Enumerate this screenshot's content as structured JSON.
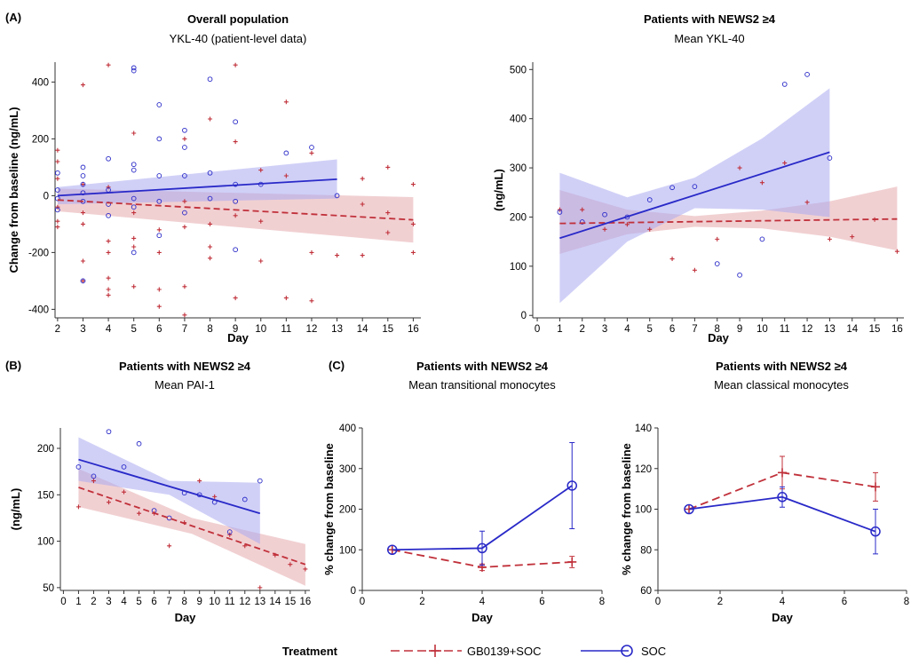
{
  "panel_letters": {
    "a": "(A)",
    "b": "(B)",
    "c": "(C)"
  },
  "legend": {
    "title": "Treatment",
    "items": [
      {
        "label": "GB0139+SOC",
        "color": "#c0303a",
        "dash": true,
        "marker": "plus"
      },
      {
        "label": "SOC",
        "color": "#2929c8",
        "dash": false,
        "marker": "circle"
      }
    ]
  },
  "colors": {
    "gb": "#c0303a",
    "soc": "#2929c8",
    "gb_band": "#e6a9ad",
    "soc_band": "#a9a9f0"
  },
  "chart_data": [
    {
      "id": "a1",
      "type": "scatter",
      "title": "Overall population",
      "subtitle": "YKL-40 (patient-level data)",
      "xlabel": "Day",
      "ylabel": "Change from baseline (ng/mL)",
      "xlim": [
        1.9,
        16.3
      ],
      "ylim": [
        -430,
        470
      ],
      "xticks": [
        2,
        3,
        4,
        5,
        6,
        7,
        8,
        9,
        10,
        11,
        12,
        13,
        14,
        15,
        16
      ],
      "yticks": [
        -400,
        -200,
        0,
        200,
        400
      ],
      "series": [
        {
          "name": "GB0139+SOC",
          "trend": {
            "x": [
              2,
              16
            ],
            "y": [
              -15,
              -85
            ]
          },
          "band": {
            "x": [
              2,
              16
            ],
            "lower": [
              -55,
              -165
            ],
            "upper": [
              25,
              -5
            ]
          },
          "points": [
            [
              2,
              160
            ],
            [
              2,
              120
            ],
            [
              2,
              60
            ],
            [
              2,
              -40
            ],
            [
              2,
              -90
            ],
            [
              2,
              -110
            ],
            [
              3,
              390
            ],
            [
              3,
              -60
            ],
            [
              3,
              -100
            ],
            [
              3,
              -230
            ],
            [
              3,
              -300
            ],
            [
              3,
              40
            ],
            [
              4,
              460
            ],
            [
              4,
              -160
            ],
            [
              4,
              -200
            ],
            [
              4,
              -290
            ],
            [
              4,
              -330
            ],
            [
              4,
              -350
            ],
            [
              4,
              30
            ],
            [
              5,
              220
            ],
            [
              5,
              -60
            ],
            [
              5,
              -150
            ],
            [
              5,
              -320
            ],
            [
              5,
              -180
            ],
            [
              6,
              -120
            ],
            [
              6,
              -200
            ],
            [
              6,
              -330
            ],
            [
              6,
              -390
            ],
            [
              7,
              -20
            ],
            [
              7,
              -110
            ],
            [
              7,
              -320
            ],
            [
              7,
              -420
            ],
            [
              7,
              200
            ],
            [
              8,
              270
            ],
            [
              8,
              -100
            ],
            [
              8,
              -180
            ],
            [
              8,
              -220
            ],
            [
              9,
              460
            ],
            [
              9,
              190
            ],
            [
              9,
              -70
            ],
            [
              9,
              -360
            ],
            [
              10,
              90
            ],
            [
              10,
              -90
            ],
            [
              10,
              -230
            ],
            [
              11,
              330
            ],
            [
              11,
              70
            ],
            [
              11,
              -360
            ],
            [
              12,
              150
            ],
            [
              12,
              -200
            ],
            [
              12,
              -370
            ],
            [
              13,
              -210
            ],
            [
              14,
              60
            ],
            [
              14,
              -30
            ],
            [
              14,
              -210
            ],
            [
              15,
              100
            ],
            [
              15,
              -60
            ],
            [
              15,
              -130
            ],
            [
              16,
              40
            ],
            [
              16,
              -100
            ],
            [
              16,
              -200
            ]
          ]
        },
        {
          "name": "SOC",
          "trend": {
            "x": [
              2,
              13
            ],
            "y": [
              0,
              58
            ]
          },
          "band": {
            "x": [
              2,
              13
            ],
            "lower": [
              -30,
              -10
            ],
            "upper": [
              30,
              128
            ]
          },
          "points": [
            [
              2,
              80
            ],
            [
              2,
              20
            ],
            [
              2,
              -10
            ],
            [
              2,
              -50
            ],
            [
              3,
              100
            ],
            [
              3,
              70
            ],
            [
              3,
              40
            ],
            [
              3,
              10
            ],
            [
              3,
              -20
            ],
            [
              3,
              -300
            ],
            [
              4,
              130
            ],
            [
              4,
              20
            ],
            [
              4,
              -30
            ],
            [
              4,
              -70
            ],
            [
              5,
              450
            ],
            [
              5,
              440
            ],
            [
              5,
              110
            ],
            [
              5,
              90
            ],
            [
              5,
              -10
            ],
            [
              5,
              -40
            ],
            [
              5,
              -200
            ],
            [
              6,
              320
            ],
            [
              6,
              200
            ],
            [
              6,
              70
            ],
            [
              6,
              -20
            ],
            [
              6,
              -140
            ],
            [
              7,
              230
            ],
            [
              7,
              170
            ],
            [
              7,
              70
            ],
            [
              7,
              -60
            ],
            [
              8,
              410
            ],
            [
              8,
              80
            ],
            [
              8,
              -10
            ],
            [
              9,
              260
            ],
            [
              9,
              40
            ],
            [
              9,
              -20
            ],
            [
              9,
              -190
            ],
            [
              10,
              40
            ],
            [
              11,
              150
            ],
            [
              12,
              170
            ],
            [
              13,
              0
            ]
          ]
        }
      ]
    },
    {
      "id": "a2",
      "type": "scatter",
      "title": "Patients with NEWS2 ≥4",
      "subtitle": "Mean YKL-40",
      "xlabel": "Day",
      "ylabel": "(ng/mL)",
      "xlim": [
        -0.2,
        16.3
      ],
      "ylim": [
        -5,
        515
      ],
      "xticks": [
        0,
        1,
        2,
        3,
        4,
        5,
        6,
        7,
        8,
        9,
        10,
        11,
        12,
        13,
        14,
        15,
        16
      ],
      "yticks": [
        0,
        100,
        200,
        300,
        400,
        500
      ],
      "series": [
        {
          "name": "GB0139+SOC",
          "trend": {
            "x": [
              1,
              16
            ],
            "y": [
              187,
              196
            ]
          },
          "band": {
            "x": [
              1,
              4,
              7,
              10,
              13,
              16
            ],
            "lower": [
              125,
              165,
              180,
              177,
              160,
              132
            ],
            "upper": [
              255,
              215,
              202,
              213,
              232,
              262
            ]
          },
          "points": [
            [
              1,
              215
            ],
            [
              2,
              215
            ],
            [
              3,
              175
            ],
            [
              4,
              185
            ],
            [
              5,
              175
            ],
            [
              6,
              115
            ],
            [
              7,
              92
            ],
            [
              8,
              155
            ],
            [
              9,
              300
            ],
            [
              10,
              270
            ],
            [
              11,
              310
            ],
            [
              12,
              230
            ],
            [
              13,
              155
            ],
            [
              14,
              160
            ],
            [
              15,
              195
            ],
            [
              16,
              130
            ]
          ]
        },
        {
          "name": "SOC",
          "trend": {
            "x": [
              1,
              13
            ],
            "y": [
              157,
              332
            ]
          },
          "band": {
            "x": [
              1,
              4,
              7,
              10,
              13
            ],
            "lower": [
              25,
              150,
              218,
              215,
              200
            ],
            "upper": [
              290,
              240,
              280,
              360,
              462
            ]
          },
          "points": [
            [
              1,
              210
            ],
            [
              2,
              190
            ],
            [
              3,
              205
            ],
            [
              4,
              200
            ],
            [
              5,
              235
            ],
            [
              6,
              260
            ],
            [
              7,
              262
            ],
            [
              8,
              105
            ],
            [
              9,
              82
            ],
            [
              10,
              155
            ],
            [
              11,
              470
            ],
            [
              12,
              490
            ],
            [
              13,
              320
            ]
          ]
        }
      ]
    },
    {
      "id": "b",
      "type": "scatter",
      "title": "Patients with NEWS2 ≥4",
      "subtitle": "Mean PAI-1",
      "xlabel": "Day",
      "ylabel": "(ng/mL)",
      "xlim": [
        -0.2,
        16.3
      ],
      "ylim": [
        47,
        222
      ],
      "xticks": [
        0,
        1,
        2,
        3,
        4,
        5,
        6,
        7,
        8,
        9,
        10,
        11,
        12,
        13,
        14,
        15,
        16
      ],
      "yticks": [
        50,
        100,
        150,
        200
      ],
      "series": [
        {
          "name": "GB0139+SOC",
          "trend": {
            "x": [
              1,
              16
            ],
            "y": [
              158,
              75
            ]
          },
          "band": {
            "x": [
              1,
              8.5,
              16
            ],
            "lower": [
              137,
              108,
              52
            ],
            "upper": [
              178,
              125,
              97
            ]
          },
          "points": [
            [
              1,
              137
            ],
            [
              2,
              165
            ],
            [
              3,
              142
            ],
            [
              4,
              153
            ],
            [
              5,
              130
            ],
            [
              6,
              130
            ],
            [
              7,
              95
            ],
            [
              8,
              120
            ],
            [
              9,
              165
            ],
            [
              10,
              148
            ],
            [
              11,
              107
            ],
            [
              12,
              95
            ],
            [
              13,
              50
            ],
            [
              14,
              85
            ],
            [
              15,
              75
            ],
            [
              16,
              70
            ]
          ]
        },
        {
          "name": "SOC",
          "trend": {
            "x": [
              1,
              13
            ],
            "y": [
              188,
              130
            ]
          },
          "band": {
            "x": [
              1,
              7,
              13
            ],
            "lower": [
              165,
              150,
              97
            ],
            "upper": [
              212,
              165,
              163
            ]
          },
          "points": [
            [
              1,
              180
            ],
            [
              2,
              170
            ],
            [
              3,
              218
            ],
            [
              4,
              180
            ],
            [
              5,
              205
            ],
            [
              6,
              133
            ],
            [
              7,
              125
            ],
            [
              8,
              152
            ],
            [
              9,
              150
            ],
            [
              10,
              142
            ],
            [
              11,
              110
            ],
            [
              12,
              145
            ],
            [
              13,
              165
            ]
          ]
        }
      ]
    },
    {
      "id": "c1",
      "type": "line",
      "title": "Patients with NEWS2 ≥4",
      "subtitle": "Mean transitional monocytes",
      "xlabel": "Day",
      "ylabel": "% change from baseline",
      "xlim": [
        0,
        8
      ],
      "ylim": [
        0,
        400
      ],
      "xticks": [
        0,
        2,
        4,
        6,
        8
      ],
      "yticks": [
        0,
        100,
        200,
        300,
        400
      ],
      "series": [
        {
          "name": "GB0139+SOC",
          "x": [
            1,
            4,
            7
          ],
          "y": [
            100,
            57,
            70
          ],
          "err": [
            0,
            8,
            14
          ]
        },
        {
          "name": "SOC",
          "x": [
            1,
            4,
            7
          ],
          "y": [
            100,
            104,
            258
          ],
          "err": [
            0,
            42,
            106
          ]
        }
      ]
    },
    {
      "id": "c2",
      "type": "line",
      "title": "Patients with NEWS2 ≥4",
      "subtitle": "Mean classical monocytes",
      "xlabel": "Day",
      "ylabel": "% change from baseline",
      "xlim": [
        0,
        8
      ],
      "ylim": [
        60,
        140
      ],
      "xticks": [
        0,
        2,
        4,
        6,
        8
      ],
      "yticks": [
        60,
        80,
        100,
        120,
        140
      ],
      "series": [
        {
          "name": "GB0139+SOC",
          "x": [
            1,
            4,
            7
          ],
          "y": [
            100,
            118,
            111
          ],
          "err": [
            0,
            8,
            7
          ]
        },
        {
          "name": "SOC",
          "x": [
            1,
            4,
            7
          ],
          "y": [
            100,
            106,
            89
          ],
          "err": [
            0,
            5,
            11
          ]
        }
      ]
    }
  ]
}
